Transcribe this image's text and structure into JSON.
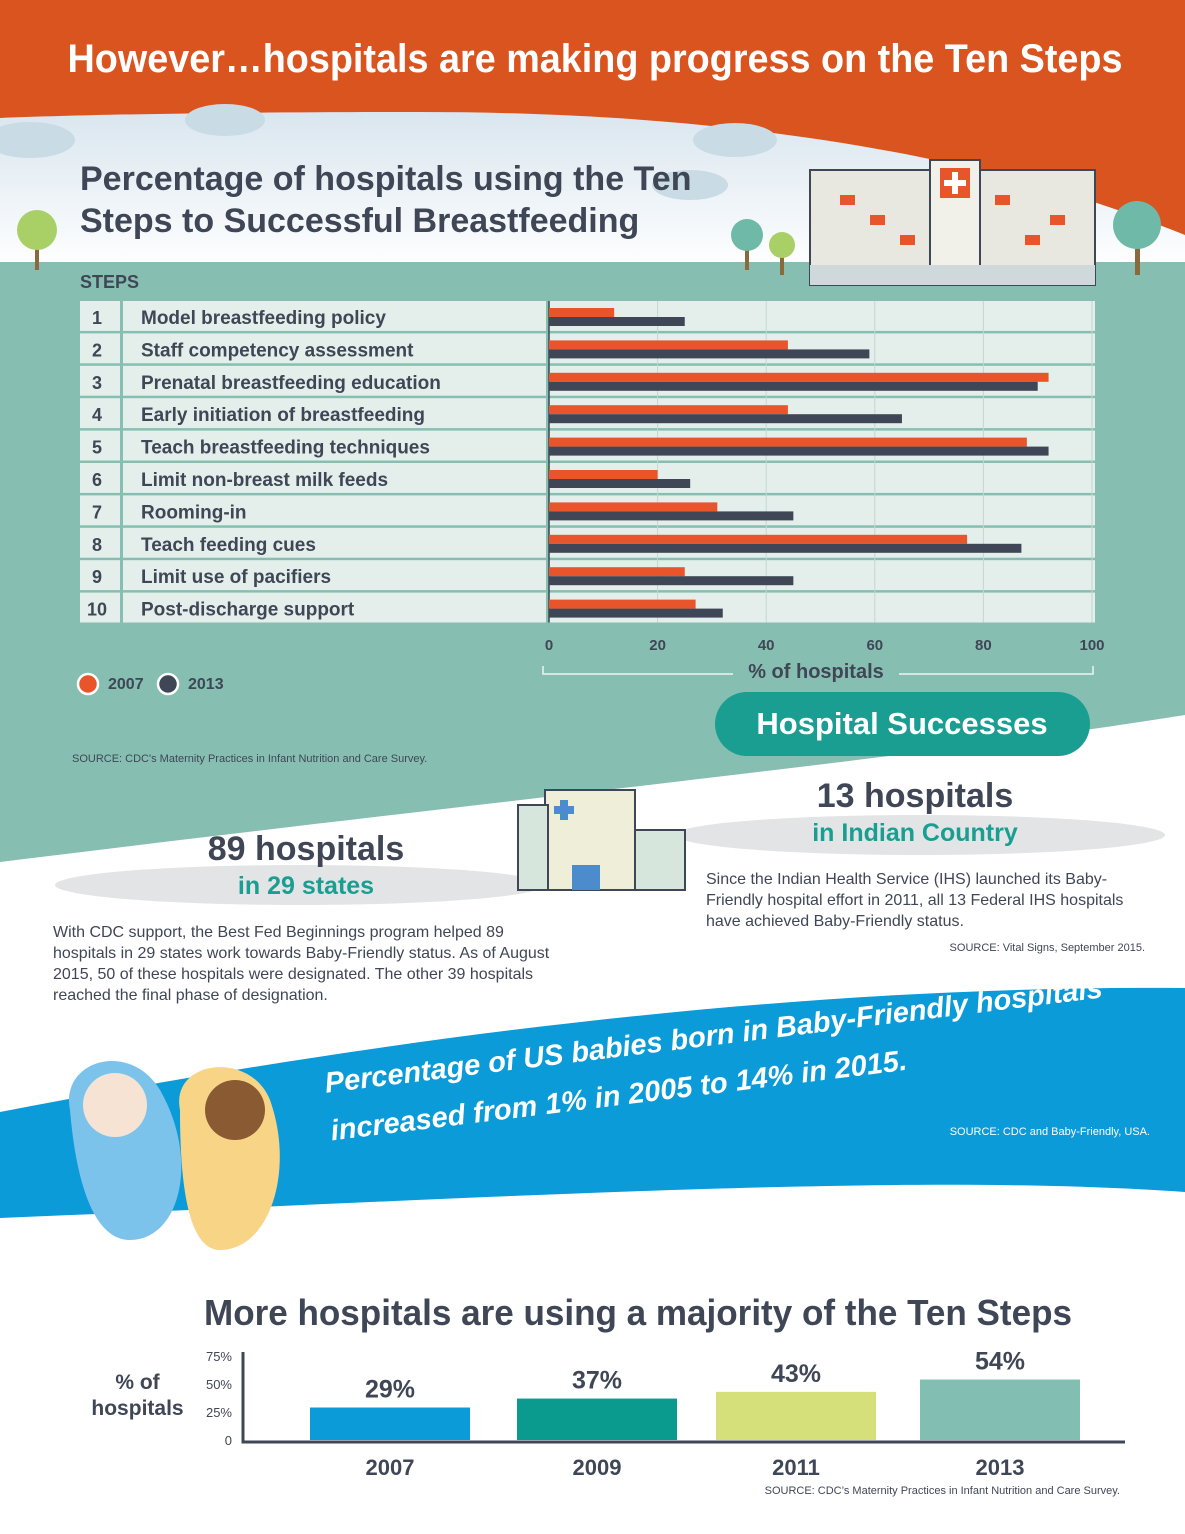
{
  "header": {
    "title": "However…hospitals are making progress on the Ten Steps"
  },
  "chart_data": [
    {
      "type": "bar",
      "orientation": "horizontal",
      "title": "Percentage of hospitals using the Ten Steps to Successful Breastfeeding",
      "category_header": "STEPS",
      "category_numbers": [
        "1",
        "2",
        "3",
        "4",
        "5",
        "6",
        "7",
        "8",
        "9",
        "10"
      ],
      "categories": [
        "Model breastfeeding policy",
        "Staff competency assessment",
        "Prenatal breastfeeding education",
        "Early initiation of breastfeeding",
        "Teach breastfeeding techniques",
        "Limit non-breast milk feeds",
        "Rooming-in",
        "Teach feeding cues",
        "Limit use of pacifiers",
        "Post-discharge support"
      ],
      "series": [
        {
          "name": "2007",
          "color": "#e8552a",
          "values": [
            12,
            44,
            92,
            44,
            88,
            20,
            31,
            77,
            25,
            27
          ]
        },
        {
          "name": "2013",
          "color": "#3f4655",
          "values": [
            25,
            59,
            90,
            65,
            92,
            26,
            45,
            87,
            45,
            32
          ]
        }
      ],
      "xlim": [
        0,
        100
      ],
      "xticks": [
        0,
        20,
        40,
        60,
        80,
        100
      ],
      "xlabel": "% of hospitals",
      "grid": true,
      "legend": "bottom-left",
      "source": "SOURCE: CDC's Maternity Practices in Infant Nutrition and Care Survey."
    },
    {
      "type": "bar",
      "title": "More hospitals are using a majority of the Ten Steps",
      "ylabel": "% of hospitals",
      "categories": [
        "2007",
        "2009",
        "2011",
        "2013"
      ],
      "values": [
        29,
        37,
        43,
        54
      ],
      "value_labels": [
        "29%",
        "37%",
        "43%",
        "54%"
      ],
      "colors": [
        "#0a9bd8",
        "#0a9a8e",
        "#d5e07a",
        "#82bfb2"
      ],
      "ylim": [
        0,
        75
      ],
      "yticks": [
        0,
        {
          "value": 25,
          "label": "25%"
        },
        {
          "value": 50,
          "label": "50%"
        },
        {
          "value": 75,
          "label": "75%"
        }
      ],
      "source": "SOURCE: CDC’s Maternity Practices in Infant Nutrition and Care Survey."
    }
  ],
  "successes": {
    "title": "Hospital Successes",
    "left": {
      "headline": "89 hospitals",
      "subhead": "in 29 states",
      "text": "With CDC support, the Best Fed Beginnings program helped 89 hospitals in 29 states work towards Baby-Friendly status. As of August 2015, 50 of these hospitals were designated. The other 39 hospitals reached the final phase of designation."
    },
    "right": {
      "headline": "13 hospitals",
      "subhead": "in Indian Country",
      "text": "Since the Indian Health Service (IHS) launched its Baby-Friendly hospital effort in 2011, all 13 Federal IHS hospitals have achieved Baby-Friendly status.",
      "source": "SOURCE: Vital Signs, September 2015."
    }
  },
  "banner": {
    "text": "Percentage of US babies born in Baby-Friendly hospitals increased from 1% in 2005 to 14% in 2015.",
    "source": "SOURCE: CDC and Baby-Friendly, USA."
  }
}
